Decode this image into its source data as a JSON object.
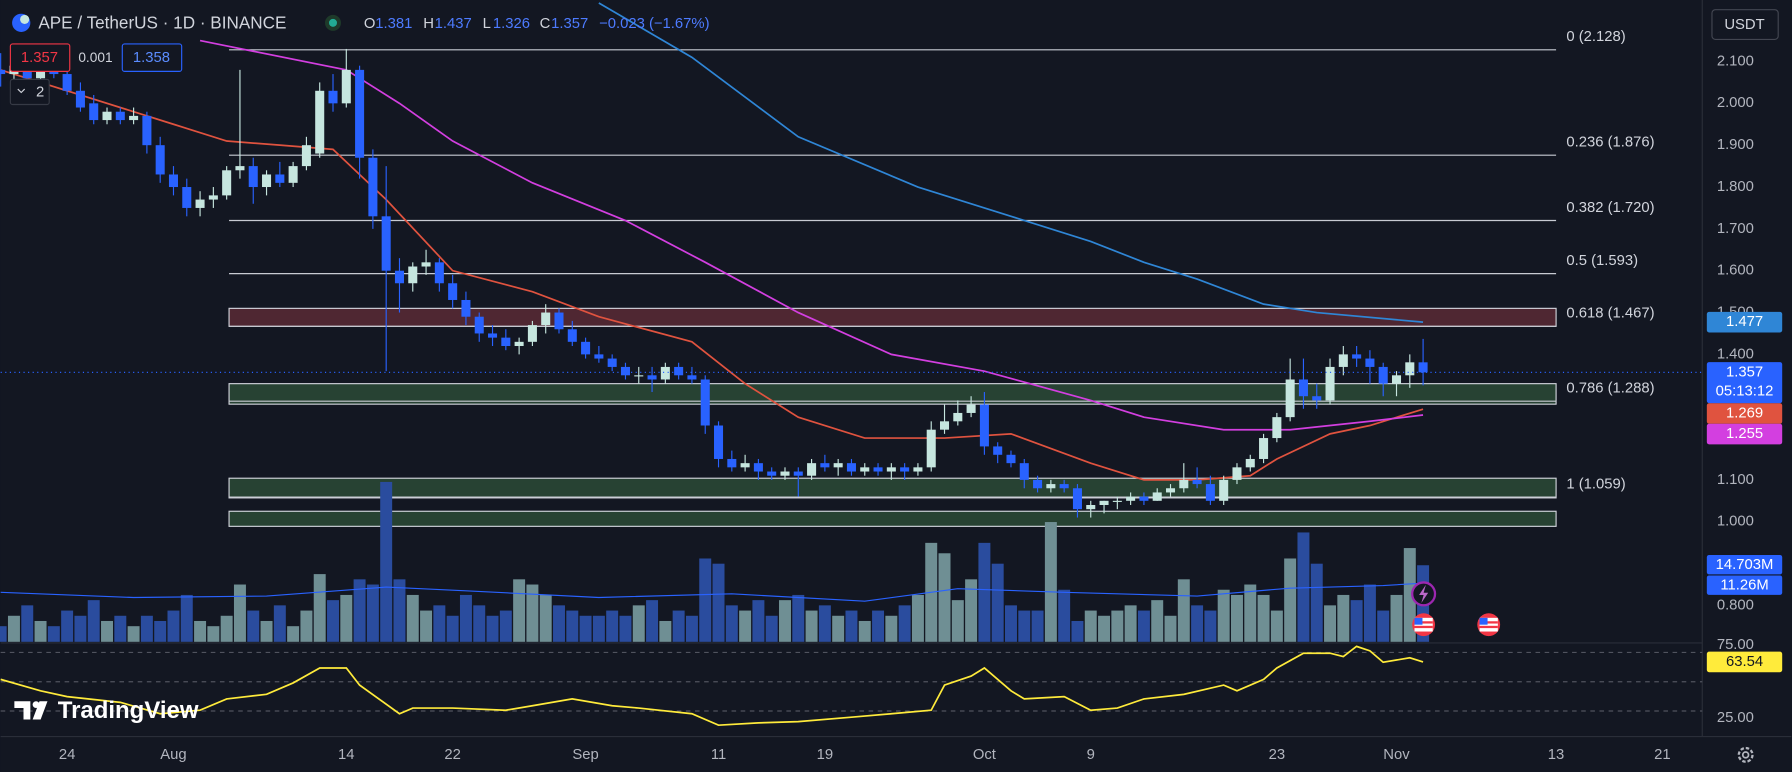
{
  "chart_data": {
    "type": "candlestick",
    "title": "APE / TetherUS · 1D · BINANCE",
    "ohlc_labels": [
      "O",
      "H",
      "L",
      "C"
    ],
    "change": "−0.023 (−1.67%)",
    "bid": 1.357,
    "spread": 0.001,
    "ask": 1.358,
    "indicator_count": 2,
    "currency": "USDT",
    "countdown": "05:13:12",
    "brand": "TradingView",
    "colors": {
      "up": "#c6e6df",
      "down": "#2962ff"
    },
    "xlim": [
      0,
      128
    ],
    "xticks": [
      {
        "value": 5,
        "label": "24"
      },
      {
        "value": 13,
        "label": "Aug"
      },
      {
        "value": 26,
        "label": "14"
      },
      {
        "value": 34,
        "label": "22"
      },
      {
        "value": 44,
        "label": "Sep"
      },
      {
        "value": 54,
        "label": "11"
      },
      {
        "value": 62,
        "label": "19"
      },
      {
        "value": 74,
        "label": "Oct"
      },
      {
        "value": 82,
        "label": "9"
      },
      {
        "value": 96,
        "label": "23"
      },
      {
        "value": 105,
        "label": "Nov"
      },
      {
        "value": 117,
        "label": "13"
      },
      {
        "value": 125,
        "label": "21"
      }
    ],
    "ylim": [
      0.713,
      2.247
    ],
    "yticks": [
      {
        "value": 2.1,
        "label": "2.100"
      },
      {
        "value": 2.0,
        "label": "2.000"
      },
      {
        "value": 1.9,
        "label": "1.900"
      },
      {
        "value": 1.8,
        "label": "1.800"
      },
      {
        "value": 1.7,
        "label": "1.700"
      },
      {
        "value": 1.6,
        "label": "1.600"
      },
      {
        "value": 1.5,
        "label": "1.500"
      },
      {
        "value": 1.4,
        "label": "1.400"
      },
      {
        "value": 1.1,
        "label": "1.100"
      },
      {
        "value": 1.0,
        "label": "1.000"
      },
      {
        "value": 0.8,
        "label": "0.800"
      }
    ],
    "candles": [
      [
        2.08,
        2.12,
        2.04,
        2.07
      ],
      [
        2.07,
        2.1,
        2.03,
        2.09
      ],
      [
        2.09,
        2.11,
        2.05,
        2.06
      ],
      [
        2.06,
        2.09,
        2.04,
        2.08
      ],
      [
        2.08,
        2.1,
        2.06,
        2.07
      ],
      [
        2.07,
        2.08,
        2.02,
        2.03
      ],
      [
        2.03,
        2.05,
        1.98,
        1.99
      ],
      [
        2.0,
        2.02,
        1.95,
        1.96
      ],
      [
        1.96,
        1.99,
        1.95,
        1.98
      ],
      [
        1.98,
        1.99,
        1.95,
        1.96
      ],
      [
        1.96,
        1.99,
        1.95,
        1.97
      ],
      [
        1.97,
        1.98,
        1.88,
        1.9
      ],
      [
        1.9,
        1.92,
        1.81,
        1.83
      ],
      [
        1.83,
        1.85,
        1.78,
        1.8
      ],
      [
        1.8,
        1.82,
        1.73,
        1.75
      ],
      [
        1.75,
        1.79,
        1.73,
        1.77
      ],
      [
        1.77,
        1.8,
        1.75,
        1.78
      ],
      [
        1.78,
        1.85,
        1.77,
        1.84
      ],
      [
        1.84,
        2.08,
        1.82,
        1.85
      ],
      [
        1.85,
        1.87,
        1.76,
        1.8
      ],
      [
        1.8,
        1.84,
        1.78,
        1.83
      ],
      [
        1.83,
        1.86,
        1.8,
        1.81
      ],
      [
        1.81,
        1.86,
        1.8,
        1.85
      ],
      [
        1.85,
        1.92,
        1.84,
        1.9
      ],
      [
        1.88,
        2.05,
        1.87,
        2.03
      ],
      [
        2.03,
        2.07,
        1.98,
        2.0
      ],
      [
        2.0,
        2.13,
        1.99,
        2.08
      ],
      [
        2.08,
        2.09,
        1.82,
        1.87
      ],
      [
        1.87,
        1.89,
        1.7,
        1.73
      ],
      [
        1.73,
        1.85,
        1.36,
        1.6
      ],
      [
        1.6,
        1.63,
        1.5,
        1.57
      ],
      [
        1.57,
        1.62,
        1.55,
        1.61
      ],
      [
        1.61,
        1.65,
        1.59,
        1.62
      ],
      [
        1.62,
        1.63,
        1.55,
        1.57
      ],
      [
        1.57,
        1.59,
        1.51,
        1.53
      ],
      [
        1.53,
        1.55,
        1.47,
        1.49
      ],
      [
        1.49,
        1.5,
        1.43,
        1.45
      ],
      [
        1.45,
        1.47,
        1.42,
        1.44
      ],
      [
        1.44,
        1.46,
        1.41,
        1.42
      ],
      [
        1.42,
        1.44,
        1.4,
        1.43
      ],
      [
        1.43,
        1.48,
        1.42,
        1.47
      ],
      [
        1.47,
        1.52,
        1.45,
        1.5
      ],
      [
        1.5,
        1.51,
        1.45,
        1.46
      ],
      [
        1.46,
        1.48,
        1.42,
        1.43
      ],
      [
        1.43,
        1.44,
        1.39,
        1.4
      ],
      [
        1.4,
        1.42,
        1.38,
        1.39
      ],
      [
        1.39,
        1.4,
        1.36,
        1.37
      ],
      [
        1.37,
        1.38,
        1.34,
        1.35
      ],
      [
        1.35,
        1.37,
        1.33,
        1.35
      ],
      [
        1.35,
        1.37,
        1.31,
        1.34
      ],
      [
        1.34,
        1.38,
        1.33,
        1.37
      ],
      [
        1.37,
        1.38,
        1.34,
        1.35
      ],
      [
        1.35,
        1.37,
        1.33,
        1.34
      ],
      [
        1.34,
        1.35,
        1.21,
        1.23
      ],
      [
        1.23,
        1.24,
        1.13,
        1.15
      ],
      [
        1.15,
        1.17,
        1.12,
        1.13
      ],
      [
        1.13,
        1.16,
        1.12,
        1.14
      ],
      [
        1.14,
        1.15,
        1.1,
        1.12
      ],
      [
        1.12,
        1.13,
        1.1,
        1.11
      ],
      [
        1.11,
        1.13,
        1.1,
        1.12
      ],
      [
        1.12,
        1.13,
        1.06,
        1.11
      ],
      [
        1.11,
        1.15,
        1.1,
        1.14
      ],
      [
        1.14,
        1.16,
        1.12,
        1.13
      ],
      [
        1.13,
        1.15,
        1.11,
        1.14
      ],
      [
        1.14,
        1.15,
        1.11,
        1.12
      ],
      [
        1.12,
        1.14,
        1.11,
        1.13
      ],
      [
        1.13,
        1.14,
        1.11,
        1.12
      ],
      [
        1.12,
        1.14,
        1.1,
        1.13
      ],
      [
        1.13,
        1.14,
        1.1,
        1.12
      ],
      [
        1.12,
        1.14,
        1.11,
        1.13
      ],
      [
        1.13,
        1.24,
        1.12,
        1.22
      ],
      [
        1.22,
        1.28,
        1.21,
        1.24
      ],
      [
        1.24,
        1.29,
        1.23,
        1.26
      ],
      [
        1.26,
        1.3,
        1.25,
        1.28
      ],
      [
        1.28,
        1.31,
        1.16,
        1.18
      ],
      [
        1.18,
        1.19,
        1.14,
        1.16
      ],
      [
        1.16,
        1.17,
        1.13,
        1.14
      ],
      [
        1.14,
        1.15,
        1.08,
        1.1
      ],
      [
        1.1,
        1.11,
        1.07,
        1.08
      ],
      [
        1.08,
        1.1,
        1.07,
        1.09
      ],
      [
        1.09,
        1.1,
        1.07,
        1.08
      ],
      [
        1.08,
        1.09,
        1.01,
        1.03
      ],
      [
        1.03,
        1.05,
        1.01,
        1.04
      ],
      [
        1.04,
        1.05,
        1.02,
        1.05
      ],
      [
        1.05,
        1.06,
        1.03,
        1.05
      ],
      [
        1.05,
        1.07,
        1.04,
        1.06
      ],
      [
        1.06,
        1.07,
        1.04,
        1.05
      ],
      [
        1.05,
        1.08,
        1.05,
        1.07
      ],
      [
        1.07,
        1.09,
        1.06,
        1.08
      ],
      [
        1.08,
        1.14,
        1.07,
        1.1
      ],
      [
        1.1,
        1.13,
        1.08,
        1.09
      ],
      [
        1.09,
        1.11,
        1.04,
        1.05
      ],
      [
        1.05,
        1.11,
        1.04,
        1.1
      ],
      [
        1.1,
        1.14,
        1.09,
        1.13
      ],
      [
        1.13,
        1.16,
        1.12,
        1.15
      ],
      [
        1.15,
        1.21,
        1.14,
        1.2
      ],
      [
        1.2,
        1.26,
        1.19,
        1.25
      ],
      [
        1.25,
        1.39,
        1.24,
        1.34
      ],
      [
        1.34,
        1.39,
        1.27,
        1.3
      ],
      [
        1.3,
        1.33,
        1.27,
        1.29
      ],
      [
        1.29,
        1.39,
        1.28,
        1.37
      ],
      [
        1.37,
        1.42,
        1.35,
        1.4
      ],
      [
        1.4,
        1.42,
        1.37,
        1.39
      ],
      [
        1.39,
        1.41,
        1.33,
        1.37
      ],
      [
        1.37,
        1.38,
        1.3,
        1.33
      ],
      [
        1.33,
        1.36,
        1.3,
        1.35
      ],
      [
        1.35,
        1.4,
        1.32,
        1.381
      ],
      [
        1.381,
        1.437,
        1.326,
        1.357
      ]
    ],
    "lines": [
      {
        "color": "#e0533f",
        "x": [
          0,
          13,
          17,
          21,
          25,
          29,
          34,
          40,
          45,
          52,
          56,
          60,
          65,
          71,
          76,
          82,
          86,
          90,
          94,
          96,
          100,
          103,
          107
        ],
        "values": [
          2.08,
          1.95,
          1.91,
          1.9,
          1.89,
          1.77,
          1.6,
          1.55,
          1.49,
          1.43,
          1.33,
          1.25,
          1.2,
          1.2,
          1.21,
          1.14,
          1.1,
          1.1,
          1.11,
          1.15,
          1.21,
          1.23,
          1.269
        ]
      },
      {
        "color": "#d33fe0",
        "x": [
          15,
          26,
          30,
          34,
          40,
          47,
          53,
          60,
          67,
          74,
          82,
          86,
          92,
          97,
          103,
          107
        ],
        "values": [
          2.15,
          2.08,
          2.0,
          1.91,
          1.81,
          1.72,
          1.62,
          1.5,
          1.4,
          1.36,
          1.29,
          1.25,
          1.22,
          1.22,
          1.24,
          1.255
        ]
      },
      {
        "color": "#2f86d6",
        "x": [
          45,
          52,
          60,
          69,
          76,
          82,
          86,
          90,
          95,
          99,
          107
        ],
        "values": [
          2.24,
          2.11,
          1.92,
          1.8,
          1.73,
          1.67,
          1.62,
          1.58,
          1.52,
          1.5,
          1.477
        ]
      }
    ],
    "fib_levels": [
      {
        "value": 2.128,
        "label": "0 (2.128)"
      },
      {
        "value": 1.876,
        "label": "0.236 (1.876)"
      },
      {
        "value": 1.72,
        "label": "0.382 (1.720)"
      },
      {
        "value": 1.593,
        "label": "0.5 (1.593)"
      },
      {
        "value": 1.467,
        "label": "0.618 (1.467)"
      },
      {
        "value": 1.288,
        "label": "0.786 (1.288)"
      },
      {
        "value": 1.059,
        "label": "1 (1.059)"
      }
    ],
    "zones": [
      {
        "range": [
          1.467,
          1.51
        ],
        "color": "#5a2a35"
      },
      {
        "range": [
          1.281,
          1.33
        ],
        "color": "#2b4a36"
      },
      {
        "range": [
          1.057,
          1.104
        ],
        "color": "#2b4a36"
      },
      {
        "range": [
          0.989,
          1.025
        ],
        "color": "#2b4a36"
      }
    ],
    "volume": {
      "colors": {
        "up": "#6f8f94",
        "down": "#2a4c9e"
      },
      "last_label": "14.703M",
      "values": [
        3,
        5,
        7,
        4,
        3,
        6,
        5,
        8,
        4,
        5,
        3,
        5,
        4,
        6,
        9,
        4,
        3,
        5,
        11,
        6,
        4,
        7,
        3,
        6,
        13,
        8,
        9,
        12,
        11,
        30.7,
        12,
        9,
        6,
        7,
        5,
        9,
        7,
        5,
        6,
        12,
        11,
        9,
        7,
        6,
        5,
        5,
        6,
        5,
        7,
        8,
        4,
        6,
        5,
        16,
        15,
        7,
        6,
        8,
        5,
        8,
        9,
        6,
        7,
        5,
        6,
        4,
        6,
        5,
        7,
        9,
        19,
        17,
        8,
        12,
        19,
        15,
        7,
        6,
        6,
        23,
        10,
        4,
        6,
        5,
        6,
        7,
        6,
        8,
        5,
        12,
        7,
        6,
        10,
        9,
        11,
        9,
        6,
        16,
        21,
        15,
        7,
        9,
        8,
        11,
        6,
        9,
        18,
        14.703
      ]
    },
    "volume_ma": {
      "color": "#2962ff",
      "last_label": "11.26M",
      "x": [
        0,
        10,
        20,
        29,
        35,
        45,
        55,
        65,
        72,
        80,
        90,
        97,
        104,
        107
      ],
      "values": [
        9.5,
        8.5,
        8.8,
        10.5,
        9.8,
        8.5,
        9.2,
        7.8,
        10.2,
        9.5,
        8.8,
        10.3,
        10.8,
        11.26
      ]
    },
    "rsi": {
      "color": "#ffeb3b",
      "ylim": [
        12.5,
        77.3
      ],
      "yticks": [
        {
          "value": 75,
          "label": "75.00"
        },
        {
          "value": 25,
          "label": "25.00"
        }
      ],
      "bands": [
        70,
        50,
        30
      ],
      "x": [
        0,
        3,
        5,
        9,
        12,
        15,
        17,
        20,
        22,
        24,
        26,
        27,
        30,
        31,
        34,
        38,
        40,
        43,
        46,
        48,
        52,
        54,
        57,
        60,
        64,
        67,
        70,
        71,
        73,
        74,
        76,
        77,
        80,
        82,
        84,
        86,
        89,
        92,
        93,
        95,
        96,
        98,
        100,
        101,
        102,
        103,
        104,
        106,
        107
      ],
      "values": [
        51.6,
        43.8,
        39.8,
        35.9,
        28.1,
        30.5,
        38.3,
        41.4,
        49.2,
        59.4,
        59.4,
        47.7,
        28.1,
        32,
        32,
        30.5,
        33.6,
        38.3,
        33.6,
        32,
        28.1,
        20.3,
        21.9,
        22.7,
        25.8,
        28.1,
        30.5,
        47.7,
        53.9,
        59.4,
        43.8,
        38.3,
        39.8,
        30.5,
        32,
        38.3,
        41.4,
        47.7,
        43.8,
        51.6,
        59.4,
        69.5,
        69.5,
        67.2,
        74.2,
        71.1,
        63.3,
        66.4,
        63.54
      ]
    }
  }
}
